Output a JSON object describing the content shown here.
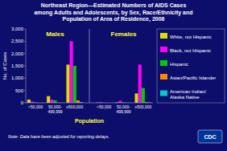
{
  "chart_data": {
    "type": "bar",
    "title": "Northeast Region—Estimated Numbers of AIDS Cases\namong Adults and Adolescents, by Sex, Race/Ethnicity and\nPopulation of Area of Residence, 2006",
    "xlabel": "Population",
    "ylabel": "No. of Cases",
    "annotations": [
      "Males",
      "Females",
      "Note: Data have been adjusted for reporting delays.",
      "CDC"
    ],
    "categories": [
      "<50,000",
      "50,000-\n499,999",
      "≥500,000",
      "<50,000",
      "50,000-\n499,999",
      "≥500,000"
    ],
    "series": [
      {
        "name": "White, not Hispanic",
        "color": "#dddd00",
        "values": [
          130,
          270,
          1550,
          10,
          15,
          380
        ]
      },
      {
        "name": "Black, not Hispanic",
        "color": "#ff00ff",
        "values": [
          50,
          130,
          2500,
          30,
          80,
          1550
        ]
      },
      {
        "name": "Hispanic",
        "color": "#00cc00",
        "values": [
          15,
          100,
          1500,
          8,
          20,
          600
        ]
      },
      {
        "name": "Asian/Pacific Islander",
        "color": "#ff8800",
        "values": [
          5,
          10,
          100,
          2,
          5,
          30
        ]
      },
      {
        "name": "American Indian/\nAlaska Native",
        "color": "#00cccc",
        "values": [
          2,
          5,
          30,
          1,
          2,
          15
        ]
      }
    ],
    "ylim": [
      0,
      3000
    ],
    "yticks": [
      0,
      500,
      {
        "value": 1000,
        "label": "1,000"
      },
      {
        "value": 1500,
        "label": "1,500"
      },
      {
        "value": 2000,
        "label": "2,000"
      },
      {
        "value": 2500,
        "label": "2,500"
      },
      {
        "value": 3000,
        "label": "3,000"
      }
    ],
    "grid": false,
    "legend": "right"
  }
}
